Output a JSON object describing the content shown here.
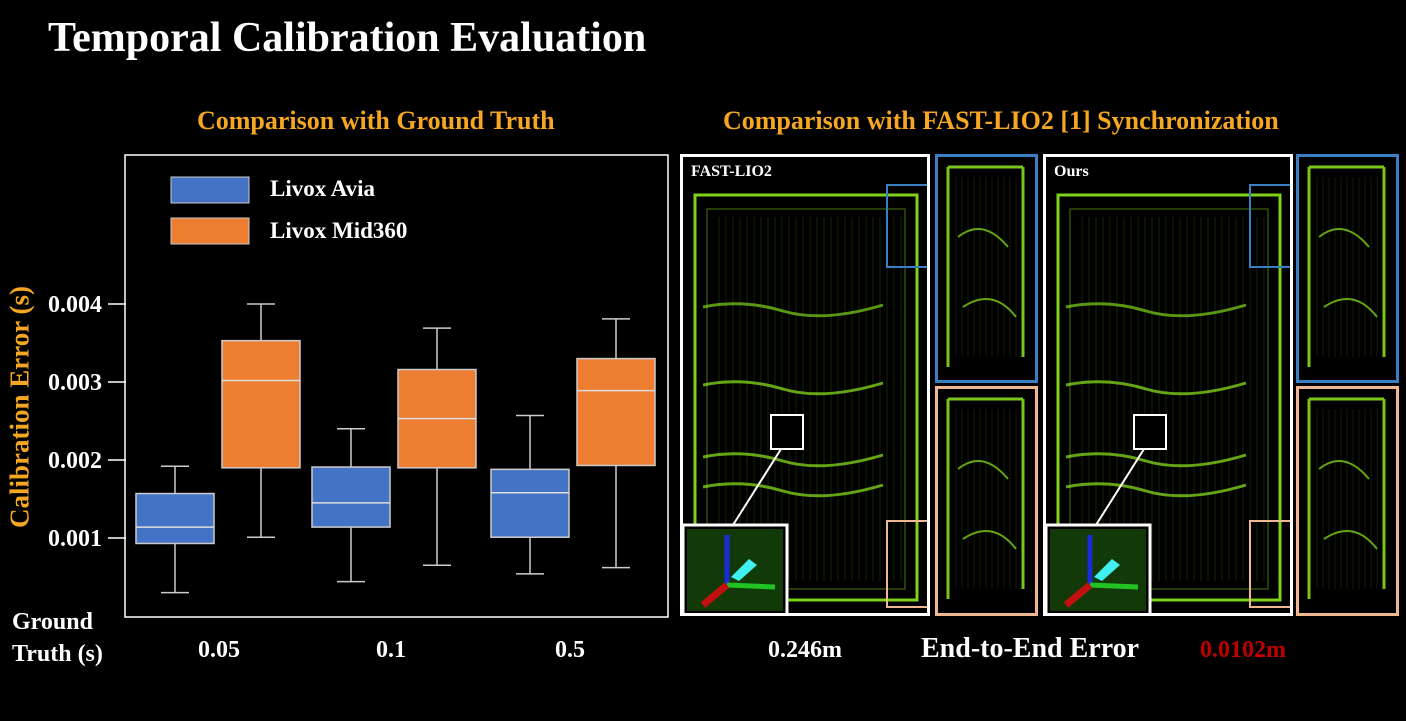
{
  "title": "Temporal Calibration Evaluation",
  "left_subtitle": "Comparison with Ground Truth",
  "right_subtitle": "Comparison with FAST-LIO2 [1] Synchronization",
  "chart_data": {
    "type": "box",
    "ylabel": "Calibration Error (s)",
    "xlabel": "Ground\nTruth (s)",
    "xlabel_line1": "Ground",
    "xlabel_line2": "Truth (s)",
    "categories": [
      "0.05",
      "0.1",
      "0.5"
    ],
    "yticks": [
      "0.001",
      "0.002",
      "0.003",
      "0.004"
    ],
    "ylim": [
      0.0,
      0.0048
    ],
    "legend_position": "top-left",
    "grid": false,
    "series": [
      {
        "name": "Livox Avia",
        "color": "#4472c4",
        "boxes": [
          {
            "min": 0.0003,
            "q1": 0.00093,
            "median": 0.00114,
            "q3": 0.00157,
            "max": 0.00192
          },
          {
            "min": 0.00044,
            "q1": 0.00114,
            "median": 0.00145,
            "q3": 0.00191,
            "max": 0.0024
          },
          {
            "min": 0.00054,
            "q1": 0.00101,
            "median": 0.00158,
            "q3": 0.00188,
            "max": 0.00257
          }
        ]
      },
      {
        "name": "Livox Mid360",
        "color": "#ed7d31",
        "boxes": [
          {
            "min": 0.00101,
            "q1": 0.0019,
            "median": 0.00302,
            "q3": 0.00353,
            "max": 0.004
          },
          {
            "min": 0.00065,
            "q1": 0.0019,
            "median": 0.00253,
            "q3": 0.00316,
            "max": 0.00369
          },
          {
            "min": 0.00062,
            "q1": 0.00193,
            "median": 0.00289,
            "q3": 0.0033,
            "max": 0.00381
          }
        ]
      }
    ]
  },
  "maps": {
    "left_label": "FAST-LIO2",
    "right_label": "Ours",
    "point_color": "#8ee81c",
    "zoom_top_color": "#3a7fc1",
    "zoom_bottom_color": "#f0b890"
  },
  "results": {
    "fastlio_error": "0.246m",
    "metric_label": "End-to-End Error",
    "ours_error": "0.0102m",
    "ours_color": "#c00000"
  }
}
